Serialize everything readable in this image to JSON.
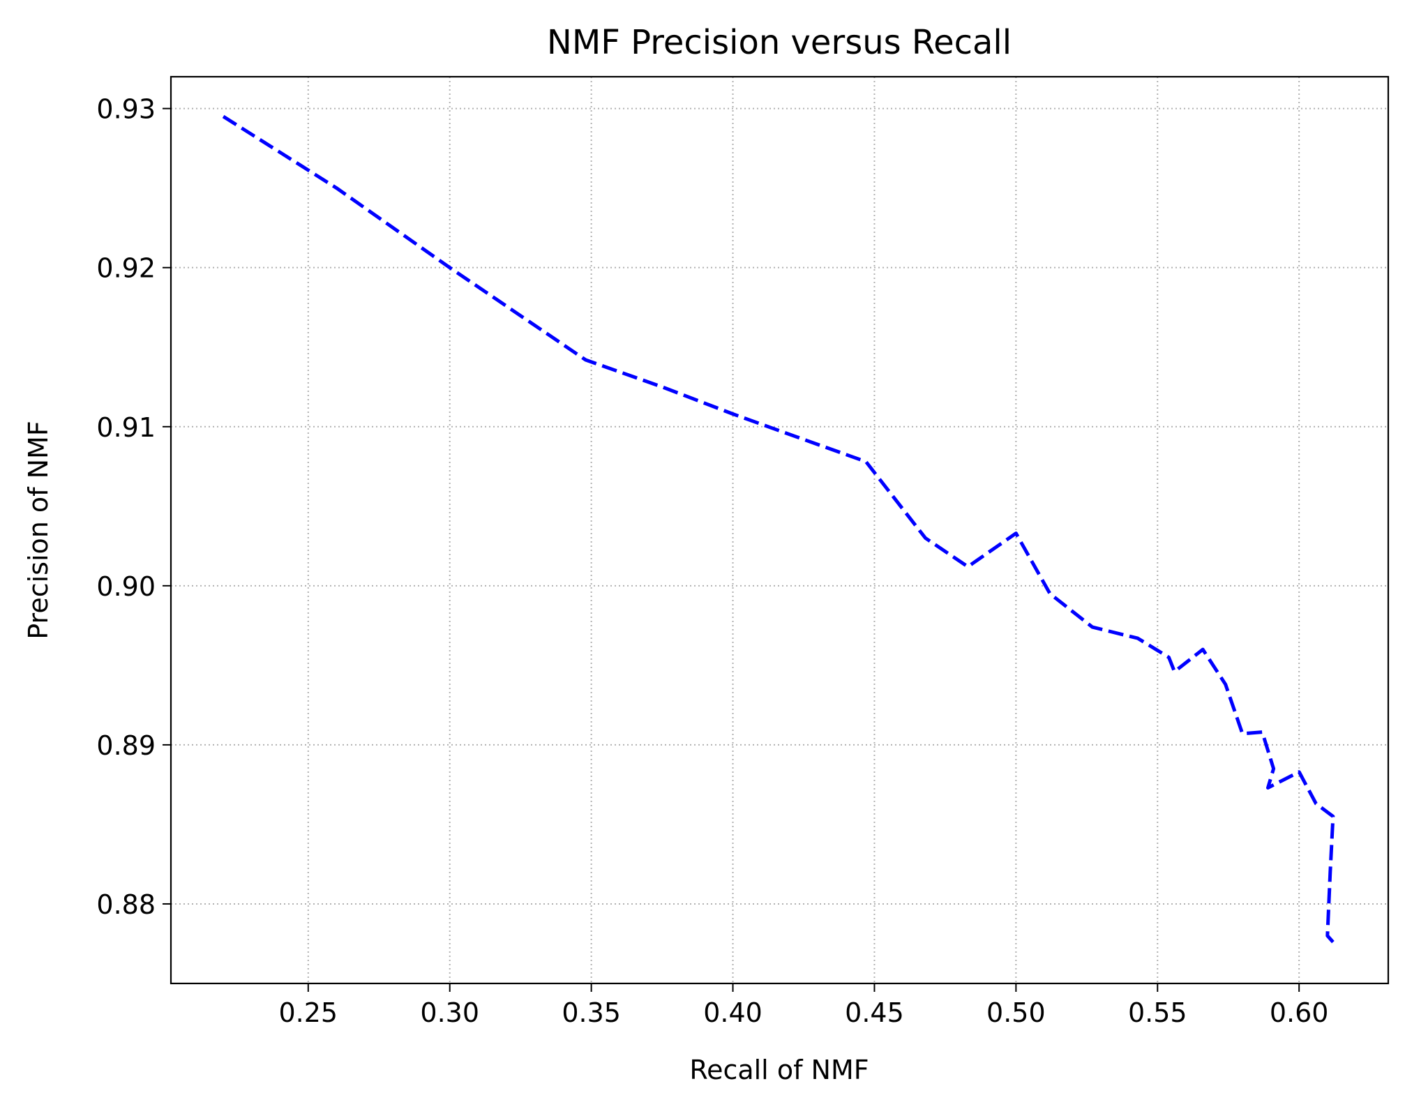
{
  "chart_data": {
    "type": "line",
    "title": "NMF Precision versus Recall",
    "xlabel": "Recall of NMF",
    "ylabel": "Precision of NMF",
    "xlim": [
      0.2015,
      0.6315
    ],
    "ylim": [
      0.875,
      0.932
    ],
    "x_ticks": [
      0.25,
      0.3,
      0.35,
      0.4,
      0.45,
      0.5,
      0.55,
      0.6
    ],
    "x_tick_labels": [
      "0.25",
      "0.30",
      "0.35",
      "0.40",
      "0.45",
      "0.50",
      "0.55",
      "0.60"
    ],
    "y_ticks": [
      0.88,
      0.89,
      0.9,
      0.91,
      0.92,
      0.93
    ],
    "y_tick_labels": [
      "0.88",
      "0.89",
      "0.90",
      "0.91",
      "0.92",
      "0.93"
    ],
    "grid": true,
    "series": [
      {
        "color": "#0000ff",
        "line_style": "dashed",
        "x": [
          0.22,
          0.26,
          0.3,
          0.348,
          0.375,
          0.4,
          0.425,
          0.447,
          0.468,
          0.483,
          0.5,
          0.512,
          0.527,
          0.543,
          0.554,
          0.556,
          0.566,
          0.574,
          0.58,
          0.587,
          0.591,
          0.589,
          0.6,
          0.606,
          0.612,
          0.611,
          0.61,
          0.612
        ],
        "y": [
          0.9295,
          0.925,
          0.92,
          0.9142,
          0.9125,
          0.9108,
          0.9092,
          0.9078,
          0.903,
          0.9012,
          0.9033,
          0.8995,
          0.8974,
          0.8967,
          0.8955,
          0.8946,
          0.896,
          0.8938,
          0.8907,
          0.8908,
          0.8885,
          0.8873,
          0.8883,
          0.8863,
          0.8855,
          0.882,
          0.878,
          0.8776
        ]
      }
    ]
  }
}
